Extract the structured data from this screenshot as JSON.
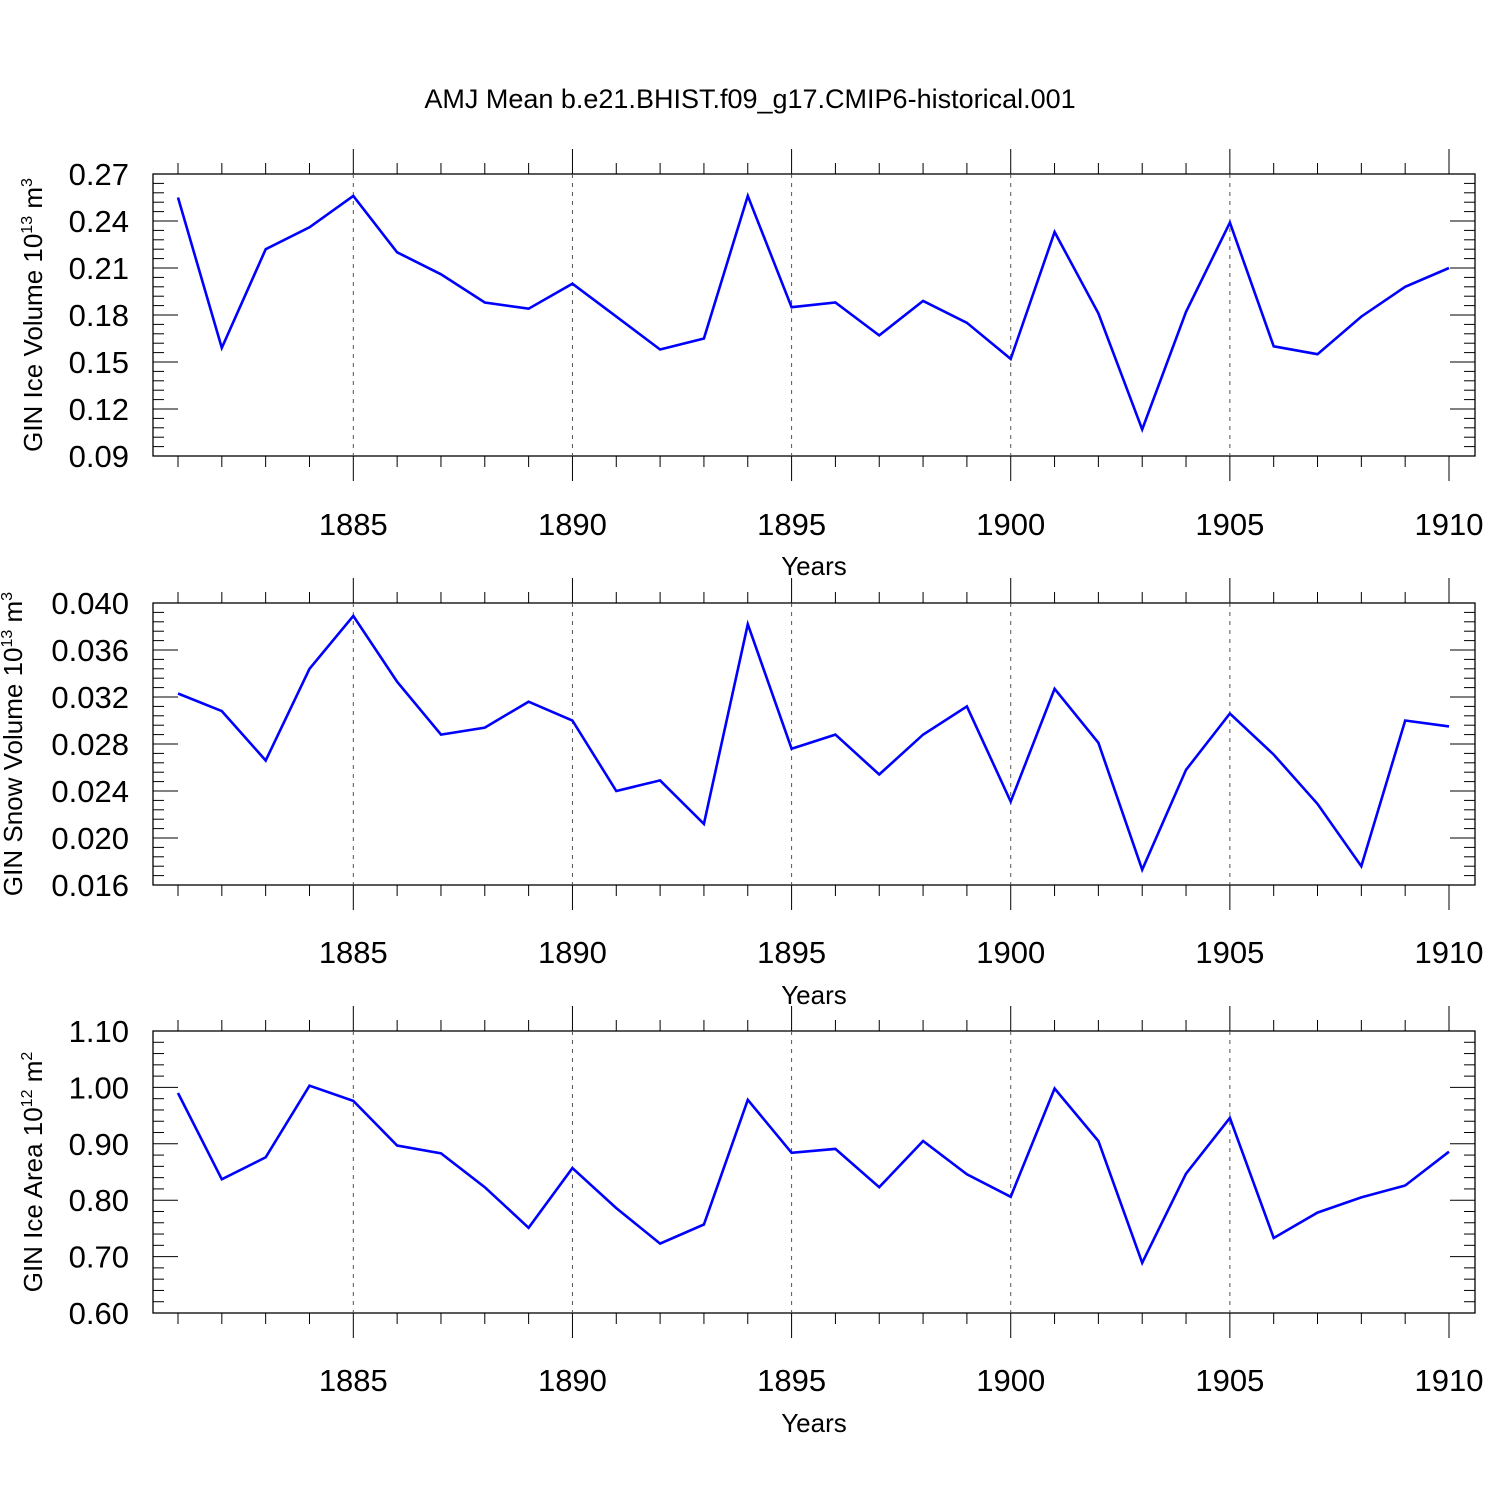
{
  "title": "AMJ Mean b.e21.BHIST.f09_g17.CMIP6-historical.001",
  "colors": {
    "series": "#0000ff",
    "axis": "#000000",
    "grid": "#555555"
  },
  "chart_data": [
    {
      "type": "line",
      "xlabel": "Years",
      "ylabel": "GIN Ice Volume 10",
      "ylabel_exp": "13",
      "ylabel_unit": " m",
      "ylabel_unit_exp": "3",
      "xlim": [
        1881,
        1910
      ],
      "ylim": [
        0.09,
        0.27
      ],
      "xticks": [
        1885,
        1890,
        1895,
        1900,
        1905,
        1910
      ],
      "yticks": [
        "0.09",
        "0.12",
        "0.15",
        "0.18",
        "0.21",
        "0.24",
        "0.27"
      ],
      "x": [
        1881,
        1882,
        1883,
        1884,
        1885,
        1886,
        1887,
        1888,
        1889,
        1890,
        1891,
        1892,
        1893,
        1894,
        1895,
        1896,
        1897,
        1898,
        1899,
        1900,
        1901,
        1902,
        1903,
        1904,
        1905,
        1906,
        1907,
        1908,
        1909,
        1910
      ],
      "values": [
        0.255,
        0.159,
        0.222,
        0.236,
        0.256,
        0.22,
        0.206,
        0.188,
        0.184,
        0.2,
        0.179,
        0.158,
        0.165,
        0.256,
        0.185,
        0.188,
        0.167,
        0.189,
        0.175,
        0.152,
        0.233,
        0.181,
        0.107,
        0.182,
        0.239,
        0.16,
        0.155,
        0.179,
        0.198,
        0.21
      ]
    },
    {
      "type": "line",
      "xlabel": "Years",
      "ylabel": "GIN Snow Volume 10",
      "ylabel_exp": "13",
      "ylabel_unit": " m",
      "ylabel_unit_exp": "3",
      "xlim": [
        1881,
        1910
      ],
      "ylim": [
        0.016,
        0.04
      ],
      "xticks": [
        1885,
        1890,
        1895,
        1900,
        1905,
        1910
      ],
      "yticks": [
        "0.016",
        "0.020",
        "0.024",
        "0.028",
        "0.032",
        "0.036",
        "0.040"
      ],
      "x": [
        1881,
        1882,
        1883,
        1884,
        1885,
        1886,
        1887,
        1888,
        1889,
        1890,
        1891,
        1892,
        1893,
        1894,
        1895,
        1896,
        1897,
        1898,
        1899,
        1900,
        1901,
        1902,
        1903,
        1904,
        1905,
        1906,
        1907,
        1908,
        1909,
        1910
      ],
      "values": [
        0.0323,
        0.0308,
        0.0266,
        0.0344,
        0.0389,
        0.0333,
        0.0288,
        0.0294,
        0.0316,
        0.03,
        0.024,
        0.0249,
        0.0212,
        0.0382,
        0.0276,
        0.0288,
        0.0254,
        0.0288,
        0.0312,
        0.0231,
        0.0327,
        0.0281,
        0.0173,
        0.0258,
        0.0306,
        0.0271,
        0.0229,
        0.0176,
        0.03,
        0.0295
      ]
    },
    {
      "type": "line",
      "xlabel": "Years",
      "ylabel": "GIN Ice Area 10",
      "ylabel_exp": "12",
      "ylabel_unit": " m",
      "ylabel_unit_exp": "2",
      "xlim": [
        1881,
        1910
      ],
      "ylim": [
        0.6,
        1.1
      ],
      "xticks": [
        1885,
        1890,
        1895,
        1900,
        1905,
        1910
      ],
      "yticks": [
        "0.60",
        "0.70",
        "0.80",
        "0.90",
        "1.00",
        "1.10"
      ],
      "x": [
        1881,
        1882,
        1883,
        1884,
        1885,
        1886,
        1887,
        1888,
        1889,
        1890,
        1891,
        1892,
        1893,
        1894,
        1895,
        1896,
        1897,
        1898,
        1899,
        1900,
        1901,
        1902,
        1903,
        1904,
        1905,
        1906,
        1907,
        1908,
        1909,
        1910
      ],
      "values": [
        0.99,
        0.837,
        0.876,
        1.003,
        0.976,
        0.897,
        0.883,
        0.823,
        0.751,
        0.857,
        0.786,
        0.723,
        0.757,
        0.978,
        0.884,
        0.891,
        0.823,
        0.905,
        0.846,
        0.806,
        0.998,
        0.905,
        0.689,
        0.847,
        0.946,
        0.733,
        0.778,
        0.805,
        0.826,
        0.886
      ]
    }
  ]
}
